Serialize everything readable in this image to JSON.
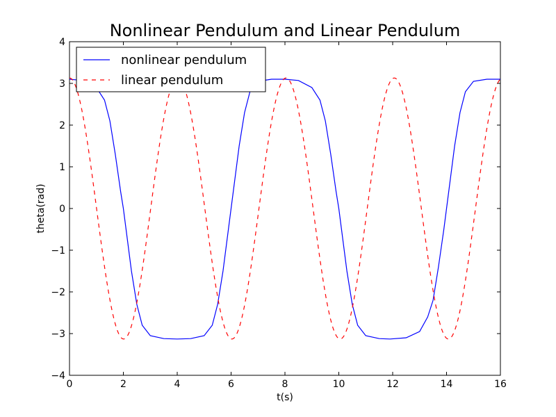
{
  "chart_data": {
    "type": "line",
    "title": "Nonlinear Pendulum and Linear Pendulum",
    "xlabel": "t(s)",
    "ylabel": "theta(rad)",
    "xlim": [
      0,
      16
    ],
    "ylim": [
      -4,
      4
    ],
    "x_ticks": [
      "0",
      "2",
      "4",
      "6",
      "8",
      "10",
      "12",
      "14",
      "16"
    ],
    "y_ticks": [
      "4",
      "3",
      "2",
      "1",
      "0",
      "−1",
      "−2",
      "−3",
      "−4"
    ],
    "legend_position": "top-left",
    "grid": false,
    "series": [
      {
        "name": "nonlinear pendulum",
        "color": "#0000ff",
        "style": "solid",
        "x": [
          0,
          0.5,
          1.0,
          1.3,
          1.5,
          1.7,
          1.9,
          2.0,
          2.1,
          2.3,
          2.5,
          2.7,
          3.0,
          3.5,
          4.0,
          4.5,
          5.0,
          5.3,
          5.5,
          5.7,
          5.9,
          6.0,
          6.1,
          6.3,
          6.5,
          6.7,
          7.0,
          7.5,
          8.0,
          8.5,
          9.0,
          9.3,
          9.5,
          9.7,
          9.9,
          10.0,
          10.1,
          10.3,
          10.5,
          10.7,
          11.0,
          11.5,
          11.9,
          12.5,
          13.0,
          13.3,
          13.5,
          13.7,
          13.9,
          14.0,
          14.1,
          14.3,
          14.5,
          14.7,
          15.0,
          15.5,
          16.0
        ],
        "y": [
          3.1,
          3.07,
          2.9,
          2.6,
          2.1,
          1.3,
          0.4,
          0.0,
          -0.5,
          -1.5,
          -2.3,
          -2.8,
          -3.05,
          -3.12,
          -3.13,
          -3.12,
          -3.05,
          -2.8,
          -2.3,
          -1.5,
          -0.5,
          0.0,
          0.5,
          1.5,
          2.3,
          2.8,
          3.05,
          3.1,
          3.1,
          3.07,
          2.9,
          2.6,
          2.1,
          1.3,
          0.4,
          0.0,
          -0.5,
          -1.5,
          -2.3,
          -2.8,
          -3.05,
          -3.12,
          -3.13,
          -3.1,
          -2.95,
          -2.6,
          -2.2,
          -1.4,
          -0.5,
          0.0,
          0.5,
          1.5,
          2.3,
          2.8,
          3.05,
          3.1,
          3.1
        ]
      },
      {
        "name": "linear pendulum",
        "color": "#ff0000",
        "style": "dashed",
        "amplitude": 3.13,
        "period": 4.02,
        "x_start": 0,
        "x_end": 16,
        "samples": 801
      }
    ]
  }
}
